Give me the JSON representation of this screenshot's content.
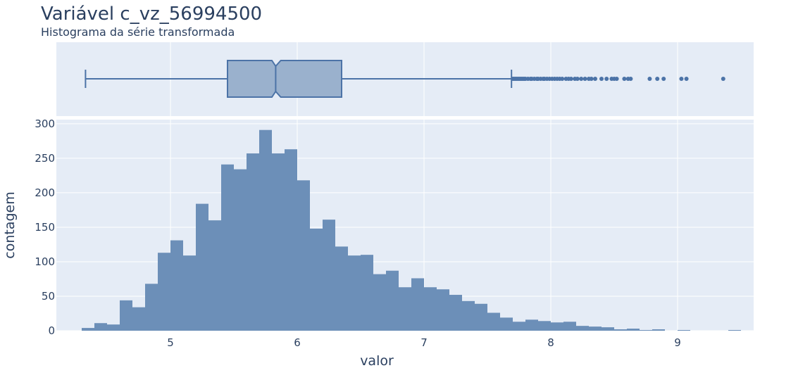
{
  "header": {
    "title": "Variável c_vz_56994500",
    "subtitle": "Histograma da série transformada"
  },
  "colors": {
    "background": "#ffffff",
    "plot_background": "#e5ecf6",
    "grid": "#ffffff",
    "bar_fill": "#6c8fb8",
    "box_fill": "#9ab1cd",
    "box_line": "#4c73a7",
    "text": "#2a3f5f"
  },
  "chart_data": [
    {
      "type": "box",
      "orientation": "horizontal",
      "notched": true,
      "whisker_low": 4.33,
      "q1": 5.45,
      "median": 5.83,
      "notch_low": 5.8,
      "notch_high": 5.87,
      "q3": 6.35,
      "whisker_high": 7.69,
      "outliers": [
        7.7,
        7.71,
        7.72,
        7.73,
        7.74,
        7.75,
        7.76,
        7.77,
        7.78,
        7.79,
        7.8,
        7.82,
        7.84,
        7.85,
        7.87,
        7.89,
        7.9,
        7.92,
        7.94,
        7.95,
        7.97,
        7.99,
        8.01,
        8.03,
        8.05,
        8.07,
        8.09,
        8.12,
        8.14,
        8.16,
        8.19,
        8.21,
        8.24,
        8.27,
        8.3,
        8.32,
        8.35,
        8.4,
        8.44,
        8.48,
        8.5,
        8.52,
        8.58,
        8.61,
        8.63,
        8.78,
        8.84,
        8.89,
        9.03,
        9.07,
        9.36
      ],
      "grid": true
    },
    {
      "type": "bar",
      "subtype": "histogram",
      "bin_start": 4.3,
      "bin_width": 0.1,
      "values": [
        4,
        11,
        9,
        44,
        34,
        68,
        113,
        131,
        109,
        184,
        160,
        241,
        234,
        257,
        291,
        257,
        263,
        218,
        148,
        161,
        122,
        109,
        110,
        82,
        87,
        63,
        76,
        63,
        60,
        52,
        43,
        39,
        26,
        19,
        13,
        16,
        14,
        12,
        13,
        7,
        6,
        5,
        2,
        3,
        1,
        2,
        0,
        1,
        0,
        0,
        0,
        1
      ],
      "xlabel": "valor",
      "ylabel": "contagem",
      "xlim": [
        4.1,
        9.6
      ],
      "ylim": [
        0,
        306
      ],
      "xticks": [
        5,
        6,
        7,
        8,
        9
      ],
      "yticks": [
        0,
        50,
        100,
        150,
        200,
        250,
        300
      ],
      "grid": true,
      "legend": "none"
    }
  ]
}
